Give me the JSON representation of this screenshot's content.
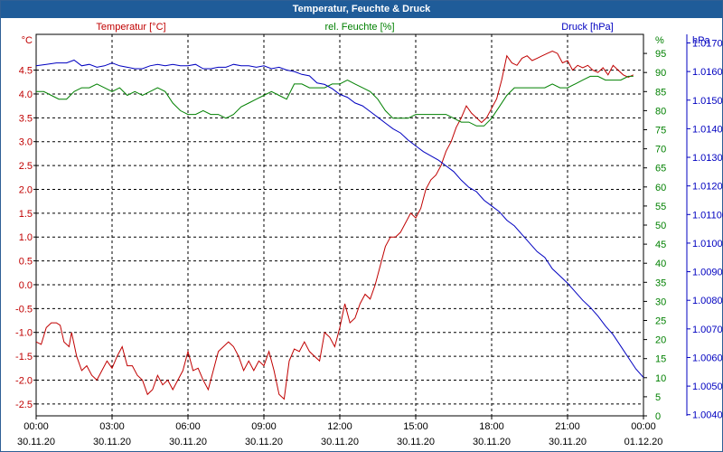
{
  "window": {
    "title": "Temperatur, Feuchte & Druck"
  },
  "chart_data": {
    "type": "line",
    "title": "Temperatur, Feuchte & Druck",
    "grid": true,
    "colors": {
      "temperature": "#c00000",
      "humidity": "#008000",
      "pressure": "#0000c0",
      "grid": "#000000",
      "titlebar": "#1f5c99"
    },
    "x_ticks": [
      {
        "time": "00:00",
        "date": "30.11.20"
      },
      {
        "time": "03:00",
        "date": "30.11.20"
      },
      {
        "time": "06:00",
        "date": "30.11.20"
      },
      {
        "time": "09:00",
        "date": "30.11.20"
      },
      {
        "time": "12:00",
        "date": "30.11.20"
      },
      {
        "time": "15:00",
        "date": "30.11.20"
      },
      {
        "time": "18:00",
        "date": "30.11.20"
      },
      {
        "time": "21:00",
        "date": "30.11.20"
      },
      {
        "time": "00:00",
        "date": "01.12.20"
      }
    ],
    "x_hours_range": [
      0,
      24
    ],
    "axes": {
      "left": {
        "label": "Temperatur [°C]",
        "unit": "°C",
        "ylim": [
          -2.75,
          5.25
        ],
        "ticks": [
          -2.5,
          -2.0,
          -1.5,
          -1.0,
          -0.5,
          0.0,
          0.5,
          1.0,
          1.5,
          2.0,
          2.5,
          3.0,
          3.5,
          4.0,
          4.5
        ]
      },
      "middle": {
        "label": "rel. Feuchte [%]",
        "unit": "%",
        "ylim": [
          0,
          100
        ],
        "ticks": [
          0,
          5,
          10,
          15,
          20,
          25,
          30,
          35,
          40,
          45,
          50,
          55,
          60,
          65,
          70,
          75,
          80,
          85,
          90,
          95
        ]
      },
      "right": {
        "label": "Druck [hPa]",
        "unit": "hPa",
        "ylim": [
          1003.96,
          1017.3
        ],
        "ticks": [
          1004,
          1005,
          1006,
          1007,
          1008,
          1009,
          1010,
          1011,
          1012,
          1013,
          1014,
          1015,
          1016,
          1017
        ]
      }
    },
    "series": [
      {
        "name": "Temperatur [°C]",
        "axis": "left",
        "points": [
          [
            0.0,
            -1.2
          ],
          [
            0.2,
            -1.25
          ],
          [
            0.4,
            -0.9
          ],
          [
            0.6,
            -0.8
          ],
          [
            0.8,
            -0.8
          ],
          [
            0.95,
            -0.85
          ],
          [
            1.1,
            -1.2
          ],
          [
            1.3,
            -1.3
          ],
          [
            1.4,
            -1.0
          ],
          [
            1.6,
            -1.5
          ],
          [
            1.8,
            -1.8
          ],
          [
            2.0,
            -1.7
          ],
          [
            2.2,
            -1.9
          ],
          [
            2.4,
            -2.0
          ],
          [
            2.6,
            -1.8
          ],
          [
            2.8,
            -1.6
          ],
          [
            3.0,
            -1.75
          ],
          [
            3.2,
            -1.5
          ],
          [
            3.4,
            -1.3
          ],
          [
            3.6,
            -1.7
          ],
          [
            3.8,
            -1.7
          ],
          [
            4.0,
            -1.9
          ],
          [
            4.2,
            -2.0
          ],
          [
            4.4,
            -2.3
          ],
          [
            4.6,
            -2.2
          ],
          [
            4.8,
            -1.9
          ],
          [
            5.0,
            -2.1
          ],
          [
            5.2,
            -2.0
          ],
          [
            5.4,
            -2.2
          ],
          [
            5.6,
            -2.0
          ],
          [
            5.8,
            -1.8
          ],
          [
            6.0,
            -1.4
          ],
          [
            6.2,
            -1.8
          ],
          [
            6.4,
            -1.75
          ],
          [
            6.6,
            -2.0
          ],
          [
            6.8,
            -2.2
          ],
          [
            7.0,
            -1.8
          ],
          [
            7.2,
            -1.4
          ],
          [
            7.4,
            -1.3
          ],
          [
            7.6,
            -1.2
          ],
          [
            7.8,
            -1.3
          ],
          [
            8.0,
            -1.5
          ],
          [
            8.2,
            -1.8
          ],
          [
            8.4,
            -1.6
          ],
          [
            8.6,
            -1.8
          ],
          [
            8.8,
            -1.6
          ],
          [
            9.0,
            -1.7
          ],
          [
            9.2,
            -1.4
          ],
          [
            9.4,
            -1.8
          ],
          [
            9.6,
            -2.3
          ],
          [
            9.8,
            -2.4
          ],
          [
            10.0,
            -1.6
          ],
          [
            10.2,
            -1.35
          ],
          [
            10.4,
            -1.4
          ],
          [
            10.6,
            -1.2
          ],
          [
            10.8,
            -1.4
          ],
          [
            11.0,
            -1.5
          ],
          [
            11.2,
            -1.6
          ],
          [
            11.4,
            -1.0
          ],
          [
            11.6,
            -1.1
          ],
          [
            11.8,
            -1.3
          ],
          [
            12.0,
            -0.9
          ],
          [
            12.2,
            -0.4
          ],
          [
            12.4,
            -0.8
          ],
          [
            12.6,
            -0.7
          ],
          [
            12.8,
            -0.4
          ],
          [
            13.0,
            -0.2
          ],
          [
            13.2,
            -0.3
          ],
          [
            13.4,
            0.0
          ],
          [
            13.6,
            0.4
          ],
          [
            13.8,
            0.8
          ],
          [
            14.0,
            1.0
          ],
          [
            14.2,
            1.0
          ],
          [
            14.4,
            1.1
          ],
          [
            14.6,
            1.3
          ],
          [
            14.8,
            1.5
          ],
          [
            15.0,
            1.4
          ],
          [
            15.2,
            1.6
          ],
          [
            15.4,
            2.0
          ],
          [
            15.6,
            2.2
          ],
          [
            15.8,
            2.3
          ],
          [
            16.0,
            2.5
          ],
          [
            16.2,
            2.8
          ],
          [
            16.4,
            3.0
          ],
          [
            16.6,
            3.3
          ],
          [
            16.8,
            3.5
          ],
          [
            17.0,
            3.75
          ],
          [
            17.2,
            3.6
          ],
          [
            17.4,
            3.5
          ],
          [
            17.6,
            3.4
          ],
          [
            17.8,
            3.5
          ],
          [
            18.0,
            3.7
          ],
          [
            18.2,
            3.9
          ],
          [
            18.4,
            4.3
          ],
          [
            18.6,
            4.8
          ],
          [
            18.8,
            4.65
          ],
          [
            19.0,
            4.6
          ],
          [
            19.2,
            4.75
          ],
          [
            19.4,
            4.8
          ],
          [
            19.6,
            4.7
          ],
          [
            19.8,
            4.75
          ],
          [
            20.0,
            4.8
          ],
          [
            20.2,
            4.85
          ],
          [
            20.4,
            4.9
          ],
          [
            20.6,
            4.85
          ],
          [
            20.8,
            4.65
          ],
          [
            21.0,
            4.7
          ],
          [
            21.2,
            4.5
          ],
          [
            21.4,
            4.6
          ],
          [
            21.6,
            4.55
          ],
          [
            21.8,
            4.6
          ],
          [
            22.0,
            4.5
          ],
          [
            22.2,
            4.45
          ],
          [
            22.4,
            4.55
          ],
          [
            22.6,
            4.4
          ],
          [
            22.8,
            4.6
          ],
          [
            23.0,
            4.5
          ],
          [
            23.2,
            4.4
          ],
          [
            23.4,
            4.35
          ],
          [
            23.6,
            4.4
          ]
        ]
      },
      {
        "name": "rel. Feuchte [%]",
        "axis": "middle",
        "points": [
          [
            0.0,
            85
          ],
          [
            0.3,
            85
          ],
          [
            0.6,
            84
          ],
          [
            0.9,
            83
          ],
          [
            1.2,
            83
          ],
          [
            1.5,
            85
          ],
          [
            1.8,
            86
          ],
          [
            2.1,
            86
          ],
          [
            2.4,
            87
          ],
          [
            2.7,
            86
          ],
          [
            3.0,
            85
          ],
          [
            3.3,
            86
          ],
          [
            3.6,
            84
          ],
          [
            3.9,
            85
          ],
          [
            4.2,
            84
          ],
          [
            4.5,
            85
          ],
          [
            4.8,
            86
          ],
          [
            5.1,
            85
          ],
          [
            5.4,
            82
          ],
          [
            5.7,
            80
          ],
          [
            6.0,
            79
          ],
          [
            6.3,
            79
          ],
          [
            6.6,
            80
          ],
          [
            6.9,
            79
          ],
          [
            7.2,
            79
          ],
          [
            7.5,
            78
          ],
          [
            7.8,
            79
          ],
          [
            8.1,
            81
          ],
          [
            8.4,
            82
          ],
          [
            8.7,
            83
          ],
          [
            9.0,
            84
          ],
          [
            9.3,
            85
          ],
          [
            9.6,
            84
          ],
          [
            9.9,
            83
          ],
          [
            10.2,
            87
          ],
          [
            10.5,
            87
          ],
          [
            10.8,
            86
          ],
          [
            11.1,
            86
          ],
          [
            11.4,
            86
          ],
          [
            11.7,
            87
          ],
          [
            12.0,
            87
          ],
          [
            12.3,
            88
          ],
          [
            12.6,
            87
          ],
          [
            12.9,
            86
          ],
          [
            13.2,
            85
          ],
          [
            13.5,
            83
          ],
          [
            13.8,
            80
          ],
          [
            14.1,
            78
          ],
          [
            14.4,
            78
          ],
          [
            14.7,
            78
          ],
          [
            15.0,
            79
          ],
          [
            15.3,
            79
          ],
          [
            15.6,
            79
          ],
          [
            15.9,
            79
          ],
          [
            16.2,
            79
          ],
          [
            16.5,
            78
          ],
          [
            16.8,
            77
          ],
          [
            17.1,
            77
          ],
          [
            17.4,
            76
          ],
          [
            17.7,
            76
          ],
          [
            18.0,
            78
          ],
          [
            18.3,
            81
          ],
          [
            18.6,
            84
          ],
          [
            18.9,
            86
          ],
          [
            19.2,
            86
          ],
          [
            19.5,
            86
          ],
          [
            19.8,
            86
          ],
          [
            20.1,
            86
          ],
          [
            20.4,
            87
          ],
          [
            20.7,
            86
          ],
          [
            21.0,
            86
          ],
          [
            21.3,
            87
          ],
          [
            21.6,
            88
          ],
          [
            21.9,
            89
          ],
          [
            22.2,
            89
          ],
          [
            22.5,
            88
          ],
          [
            22.8,
            88
          ],
          [
            23.1,
            88
          ],
          [
            23.4,
            89
          ],
          [
            23.6,
            89
          ]
        ]
      },
      {
        "name": "Druck [hPa]",
        "axis": "right",
        "points": [
          [
            0.0,
            1016.2
          ],
          [
            0.4,
            1016.25
          ],
          [
            0.8,
            1016.3
          ],
          [
            1.2,
            1016.3
          ],
          [
            1.5,
            1016.4
          ],
          [
            1.8,
            1016.2
          ],
          [
            2.1,
            1016.25
          ],
          [
            2.4,
            1016.15
          ],
          [
            2.7,
            1016.2
          ],
          [
            3.0,
            1016.3
          ],
          [
            3.3,
            1016.2
          ],
          [
            3.6,
            1016.15
          ],
          [
            3.9,
            1016.1
          ],
          [
            4.2,
            1016.1
          ],
          [
            4.5,
            1016.2
          ],
          [
            4.8,
            1016.25
          ],
          [
            5.1,
            1016.2
          ],
          [
            5.4,
            1016.25
          ],
          [
            5.7,
            1016.2
          ],
          [
            6.0,
            1016.2
          ],
          [
            6.3,
            1016.25
          ],
          [
            6.6,
            1016.1
          ],
          [
            6.9,
            1016.1
          ],
          [
            7.2,
            1016.15
          ],
          [
            7.5,
            1016.15
          ],
          [
            7.8,
            1016.25
          ],
          [
            8.1,
            1016.2
          ],
          [
            8.4,
            1016.2
          ],
          [
            8.7,
            1016.15
          ],
          [
            9.0,
            1016.2
          ],
          [
            9.3,
            1016.1
          ],
          [
            9.6,
            1016.15
          ],
          [
            9.9,
            1016.05
          ],
          [
            10.2,
            1016.0
          ],
          [
            10.5,
            1015.9
          ],
          [
            10.8,
            1015.85
          ],
          [
            11.1,
            1015.6
          ],
          [
            11.4,
            1015.55
          ],
          [
            11.7,
            1015.4
          ],
          [
            12.0,
            1015.2
          ],
          [
            12.3,
            1015.1
          ],
          [
            12.6,
            1014.9
          ],
          [
            12.9,
            1014.8
          ],
          [
            13.2,
            1014.6
          ],
          [
            13.5,
            1014.4
          ],
          [
            13.8,
            1014.2
          ],
          [
            14.1,
            1014.0
          ],
          [
            14.4,
            1013.85
          ],
          [
            14.7,
            1013.6
          ],
          [
            15.0,
            1013.4
          ],
          [
            15.3,
            1013.2
          ],
          [
            15.6,
            1013.05
          ],
          [
            15.9,
            1012.9
          ],
          [
            16.2,
            1012.7
          ],
          [
            16.5,
            1012.5
          ],
          [
            16.8,
            1012.2
          ],
          [
            17.1,
            1011.95
          ],
          [
            17.4,
            1011.8
          ],
          [
            17.7,
            1011.5
          ],
          [
            18.0,
            1011.3
          ],
          [
            18.3,
            1011.1
          ],
          [
            18.6,
            1010.8
          ],
          [
            18.9,
            1010.6
          ],
          [
            19.2,
            1010.3
          ],
          [
            19.5,
            1010.0
          ],
          [
            19.8,
            1009.7
          ],
          [
            20.1,
            1009.5
          ],
          [
            20.4,
            1009.1
          ],
          [
            20.7,
            1008.85
          ],
          [
            21.0,
            1008.6
          ],
          [
            21.3,
            1008.3
          ],
          [
            21.6,
            1008.0
          ],
          [
            21.9,
            1007.75
          ],
          [
            22.2,
            1007.45
          ],
          [
            22.5,
            1007.1
          ],
          [
            22.8,
            1006.8
          ],
          [
            23.1,
            1006.4
          ],
          [
            23.4,
            1006.0
          ],
          [
            23.7,
            1005.6
          ],
          [
            24.0,
            1005.3
          ]
        ]
      }
    ]
  }
}
